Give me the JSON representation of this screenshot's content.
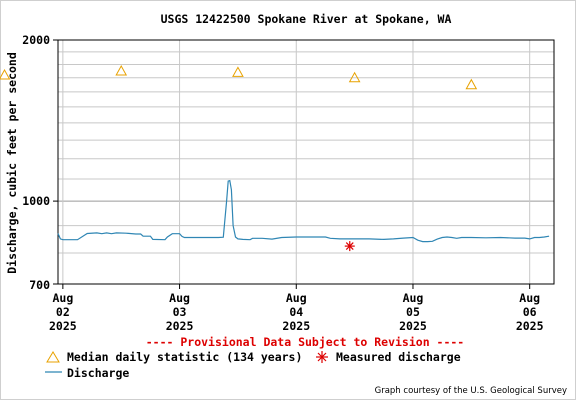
{
  "chart_data": {
    "type": "line",
    "title": "USGS 12422500 Spokane River at Spokane, WA",
    "ylabel": "Discharge, cubic feet per second",
    "y_scale": "log",
    "ylim": [
      700,
      2000
    ],
    "y_ticks_labeled": [
      "2000",
      "1000",
      "700"
    ],
    "y_minor_gridlines": [
      800,
      900,
      1100,
      1200,
      1300,
      1400,
      1500,
      1600,
      1700,
      1800,
      1900
    ],
    "x_ticks": [
      {
        "line1": "Aug",
        "line2": "02",
        "line3": "2025"
      },
      {
        "line1": "Aug",
        "line2": "03",
        "line3": "2025"
      },
      {
        "line1": "Aug",
        "line2": "04",
        "line3": "2025"
      },
      {
        "line1": "Aug",
        "line2": "05",
        "line3": "2025"
      },
      {
        "line1": "Aug",
        "line2": "06",
        "line3": "2025"
      }
    ],
    "grid": true,
    "series": [
      {
        "name": "Discharge",
        "color": "#2f86b4",
        "points": [
          [
            "2025-08-01 23:00",
            870
          ],
          [
            "2025-08-01 23:30",
            850
          ],
          [
            "2025-08-02 00:00",
            847
          ],
          [
            "2025-08-02 02:00",
            847
          ],
          [
            "2025-08-02 03:00",
            847
          ],
          [
            "2025-08-02 05:00",
            870
          ],
          [
            "2025-08-02 07:00",
            872
          ],
          [
            "2025-08-02 08:00",
            869
          ],
          [
            "2025-08-02 09:00",
            872
          ],
          [
            "2025-08-02 10:00",
            869
          ],
          [
            "2025-08-02 11:00",
            872
          ],
          [
            "2025-08-02 13:00",
            871
          ],
          [
            "2025-08-02 15:00",
            868
          ],
          [
            "2025-08-02 16:00",
            868
          ],
          [
            "2025-08-02 16:30",
            860
          ],
          [
            "2025-08-02 18:00",
            860
          ],
          [
            "2025-08-02 18:30",
            848
          ],
          [
            "2025-08-02 21:00",
            847
          ],
          [
            "2025-08-02 21:30",
            857
          ],
          [
            "2025-08-02 22:30",
            869
          ],
          [
            "2025-08-03 00:00",
            869
          ],
          [
            "2025-08-03 00:30",
            859
          ],
          [
            "2025-08-03 01:00",
            855
          ],
          [
            "2025-08-03 08:00",
            855
          ],
          [
            "2025-08-03 09:00",
            856
          ],
          [
            "2025-08-03 09:40",
            1000
          ],
          [
            "2025-08-03 10:00",
            1090
          ],
          [
            "2025-08-03 10:20",
            1092
          ],
          [
            "2025-08-03 10:40",
            1050
          ],
          [
            "2025-08-03 11:00",
            900
          ],
          [
            "2025-08-03 11:30",
            857
          ],
          [
            "2025-08-03 12:00",
            850
          ],
          [
            "2025-08-03 13:00",
            848
          ],
          [
            "2025-08-03 14:30",
            847
          ],
          [
            "2025-08-03 15:00",
            852
          ],
          [
            "2025-08-03 17:00",
            852
          ],
          [
            "2025-08-03 19:00",
            849
          ],
          [
            "2025-08-03 21:00",
            855
          ],
          [
            "2025-08-04 00:00",
            857
          ],
          [
            "2025-08-04 06:00",
            857
          ],
          [
            "2025-08-04 07:00",
            852
          ],
          [
            "2025-08-04 09:00",
            850
          ],
          [
            "2025-08-04 12:00",
            850
          ],
          [
            "2025-08-04 15:00",
            850
          ],
          [
            "2025-08-04 18:00",
            848
          ],
          [
            "2025-08-04 20:00",
            850
          ],
          [
            "2025-08-04 22:00",
            853
          ],
          [
            "2025-08-05 00:00",
            855
          ],
          [
            "2025-08-05 01:00",
            845
          ],
          [
            "2025-08-05 02:00",
            840
          ],
          [
            "2025-08-05 03:00",
            840
          ],
          [
            "2025-08-05 04:00",
            841
          ],
          [
            "2025-08-05 05:00",
            849
          ],
          [
            "2025-08-05 06:00",
            855
          ],
          [
            "2025-08-05 07:00",
            857
          ],
          [
            "2025-08-05 08:00",
            855
          ],
          [
            "2025-08-05 09:00",
            852
          ],
          [
            "2025-08-05 10:00",
            855
          ],
          [
            "2025-08-05 12:00",
            855
          ],
          [
            "2025-08-05 15:00",
            854
          ],
          [
            "2025-08-05 18:00",
            855
          ],
          [
            "2025-08-05 21:00",
            853
          ],
          [
            "2025-08-05 23:00",
            853
          ],
          [
            "2025-08-06 00:00",
            850
          ],
          [
            "2025-08-06 01:00",
            855
          ],
          [
            "2025-08-06 02:00",
            855
          ],
          [
            "2025-08-06 03:00",
            857
          ],
          [
            "2025-08-06 04:00",
            860
          ]
        ]
      }
    ],
    "median_daily": {
      "name": "Median daily statistic (134 years)",
      "color": "#e8a200",
      "points": [
        [
          "2025-08-01 12:00",
          1720
        ],
        [
          "2025-08-02 12:00",
          1750
        ],
        [
          "2025-08-03 12:00",
          1740
        ],
        [
          "2025-08-04 12:00",
          1700
        ],
        [
          "2025-08-05 12:00",
          1650
        ]
      ]
    },
    "measured": {
      "name": "Measured discharge",
      "color": "#dd0000",
      "points": [
        [
          "2025-08-04 11:00",
          824
        ]
      ]
    },
    "provisional_note": "---- Provisional Data Subject to Revision ----",
    "credit": "Graph courtesy of the U.S. Geological Survey",
    "x_range": [
      "2025-08-01 23:00",
      "2025-08-06 05:00"
    ],
    "tick_times": [
      "2025-08-02 00:00",
      "2025-08-03 00:00",
      "2025-08-04 00:00",
      "2025-08-05 00:00",
      "2025-08-06 00:00"
    ]
  }
}
